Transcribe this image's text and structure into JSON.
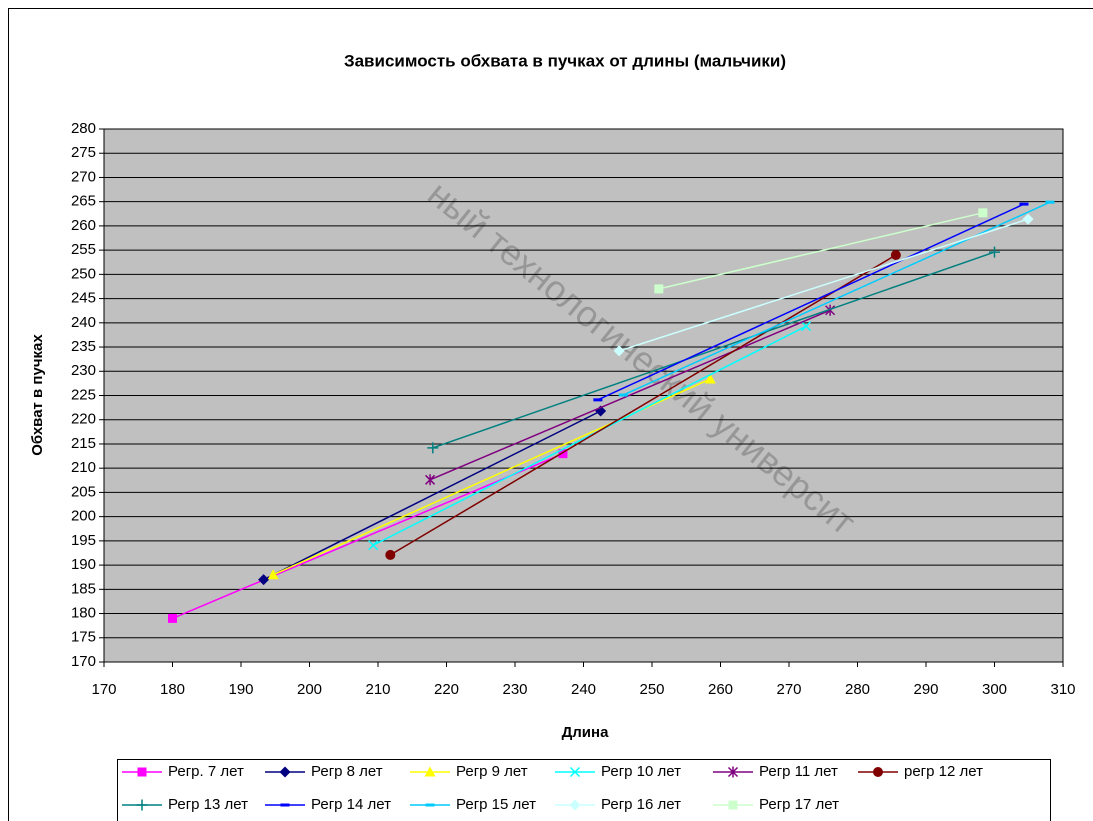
{
  "chart_data": {
    "type": "line",
    "title": "Зависимость обхвата в пучках от длины (мальчики)",
    "x_label": "Длина",
    "y_label": "Обхват в пучках",
    "watermark": "ный технологический университ",
    "xlim": [
      170,
      310
    ],
    "xticks": [
      170,
      180,
      190,
      200,
      210,
      220,
      230,
      240,
      250,
      260,
      270,
      280,
      290,
      300,
      310
    ],
    "ylim": [
      170,
      280
    ],
    "yticks": [
      170,
      175,
      180,
      185,
      190,
      195,
      200,
      205,
      210,
      215,
      220,
      225,
      230,
      235,
      240,
      245,
      250,
      255,
      260,
      265,
      270,
      275,
      280
    ],
    "grid": true,
    "plot_background": "#c0c0c0",
    "legend": "bottom",
    "series": [
      {
        "name": "Регр. 7 лет",
        "color": "#ff00ff",
        "marker": "square",
        "x": [
          180,
          237
        ],
        "values": [
          179,
          213
        ]
      },
      {
        "name": "Регр 8 лет",
        "color": "#000080",
        "marker": "diamond",
        "x": [
          193.3,
          242.5
        ],
        "values": [
          187,
          221.8
        ]
      },
      {
        "name": "Регр 9 лет",
        "color": "#ffff00",
        "marker": "triangle",
        "x": [
          194.7,
          258.5
        ],
        "values": [
          188,
          228.4
        ]
      },
      {
        "name": "Регр 10 лет",
        "color": "#00ffff",
        "marker": "x",
        "x": [
          209.3,
          272.5
        ],
        "values": [
          194.1,
          239.3
        ]
      },
      {
        "name": "Регр 11 лет",
        "color": "#800080",
        "marker": "star",
        "x": [
          217.6,
          276
        ],
        "values": [
          207.6,
          242.6
        ]
      },
      {
        "name": "регр 12 лет",
        "color": "#800000",
        "marker": "circle",
        "x": [
          211.8,
          285.6
        ],
        "values": [
          192.1,
          254
        ]
      },
      {
        "name": "Регр 13 лет",
        "color": "#008080",
        "marker": "plus",
        "x": [
          218,
          300
        ],
        "values": [
          214.2,
          254.6
        ]
      },
      {
        "name": "Регр 14 лет",
        "color": "#0000ff",
        "marker": "dash",
        "x": [
          242.1,
          304.3
        ],
        "values": [
          224.1,
          264.5
        ]
      },
      {
        "name": "Регр 15 лет",
        "color": "#00ccff",
        "marker": "dash",
        "x": [
          245.8,
          308.1
        ],
        "values": [
          225.1,
          264.9
        ]
      },
      {
        "name": "Регр 16 лет",
        "color": "#ccffff",
        "marker": "diamond",
        "x": [
          245.2,
          304.9
        ],
        "values": [
          234.2,
          261.4
        ]
      },
      {
        "name": "Регр 17 лет",
        "color": "#ccffcc",
        "marker": "square",
        "x": [
          251,
          298.3
        ],
        "values": [
          247,
          262.7
        ]
      }
    ]
  }
}
